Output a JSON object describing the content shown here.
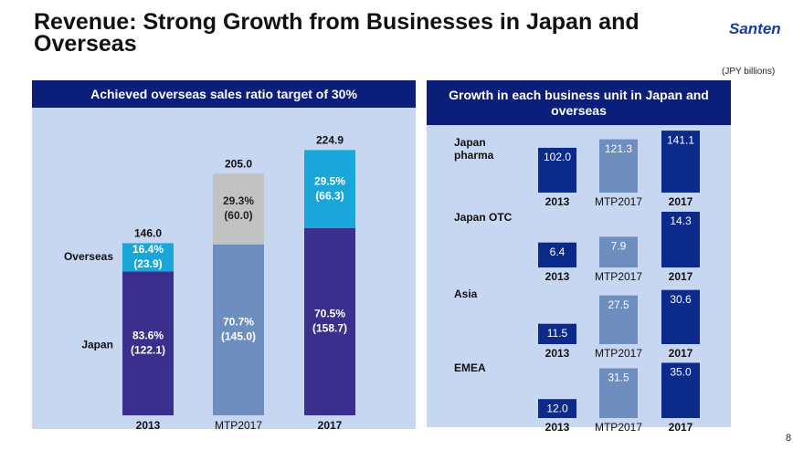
{
  "title": "Revenue: Strong Growth from Businesses in Japan and Overseas",
  "logo": "Santen",
  "unit_note": "(JPY billions)",
  "page_number": "8",
  "right_panel_title": "Growth in each business unit in Japan and overseas",
  "chart_data": [
    {
      "type": "stacked_bar",
      "title": "Achieved overseas sales ratio target of 30%",
      "categories": [
        "2013",
        "MTP2017",
        "2017"
      ],
      "ylim": [
        0,
        240
      ],
      "series": [
        {
          "name": "Japan",
          "colors": [
            "#3b2f8e",
            "#6e8ec0",
            "#3b2f8e"
          ],
          "values": [
            122.1,
            145.0,
            158.7
          ],
          "value_labels": [
            "(122.1)",
            "(145.0)",
            "(158.7)"
          ],
          "shares": [
            83.6,
            70.7,
            70.5
          ],
          "share_labels": [
            "83.6%",
            "70.7%",
            "70.5%"
          ]
        },
        {
          "name": "Overseas",
          "colors": [
            "#1ba6d9",
            "#c2c2c2",
            "#1ba6d9"
          ],
          "values": [
            23.9,
            60.0,
            66.3
          ],
          "value_labels": [
            "(23.9)",
            "(60.0)",
            "(66.3)"
          ],
          "shares": [
            16.4,
            29.3,
            29.5
          ],
          "share_labels": [
            "16.4%",
            "29.3%",
            "29.5%"
          ]
        }
      ],
      "totals": [
        146.0,
        205.0,
        224.9
      ],
      "total_labels": [
        "146.0",
        "205.0",
        "224.9"
      ]
    },
    {
      "type": "bar",
      "title": "Japan pharma",
      "categories": [
        "2013",
        "MTP2017",
        "2017"
      ],
      "values": [
        102.0,
        121.3,
        141.1
      ],
      "value_labels": [
        "102.0",
        "121.3",
        "141.1"
      ],
      "colors": [
        "#0c2a8a",
        "#6e8ec0",
        "#0c2a8a"
      ],
      "ylim": [
        0,
        133
      ]
    },
    {
      "type": "bar",
      "title": "Japan OTC",
      "categories": [
        "2013",
        "MTP2017",
        "2017"
      ],
      "values": [
        6.4,
        7.9,
        14.3
      ],
      "value_labels": [
        "6.4",
        "7.9",
        "14.3"
      ],
      "colors": [
        "#0c2a8a",
        "#6e8ec0",
        "#0c2a8a"
      ],
      "ylim": [
        0,
        15
      ]
    },
    {
      "type": "bar",
      "title": "Asia",
      "categories": [
        "2013",
        "MTP2017",
        "2017"
      ],
      "values": [
        11.5,
        27.5,
        30.6
      ],
      "value_labels": [
        "11.5",
        "27.5",
        "30.6"
      ],
      "colors": [
        "#0c2a8a",
        "#6e8ec0",
        "#0c2a8a"
      ],
      "ylim": [
        0,
        33
      ]
    },
    {
      "type": "bar",
      "title": "EMEA",
      "categories": [
        "2013",
        "MTP2017",
        "2017"
      ],
      "values": [
        12.0,
        31.5,
        35.0
      ],
      "value_labels": [
        "12.0",
        "31.5",
        "35.0"
      ],
      "colors": [
        "#0c2a8a",
        "#6e8ec0",
        "#0c2a8a"
      ],
      "ylim": [
        0,
        37
      ]
    }
  ]
}
